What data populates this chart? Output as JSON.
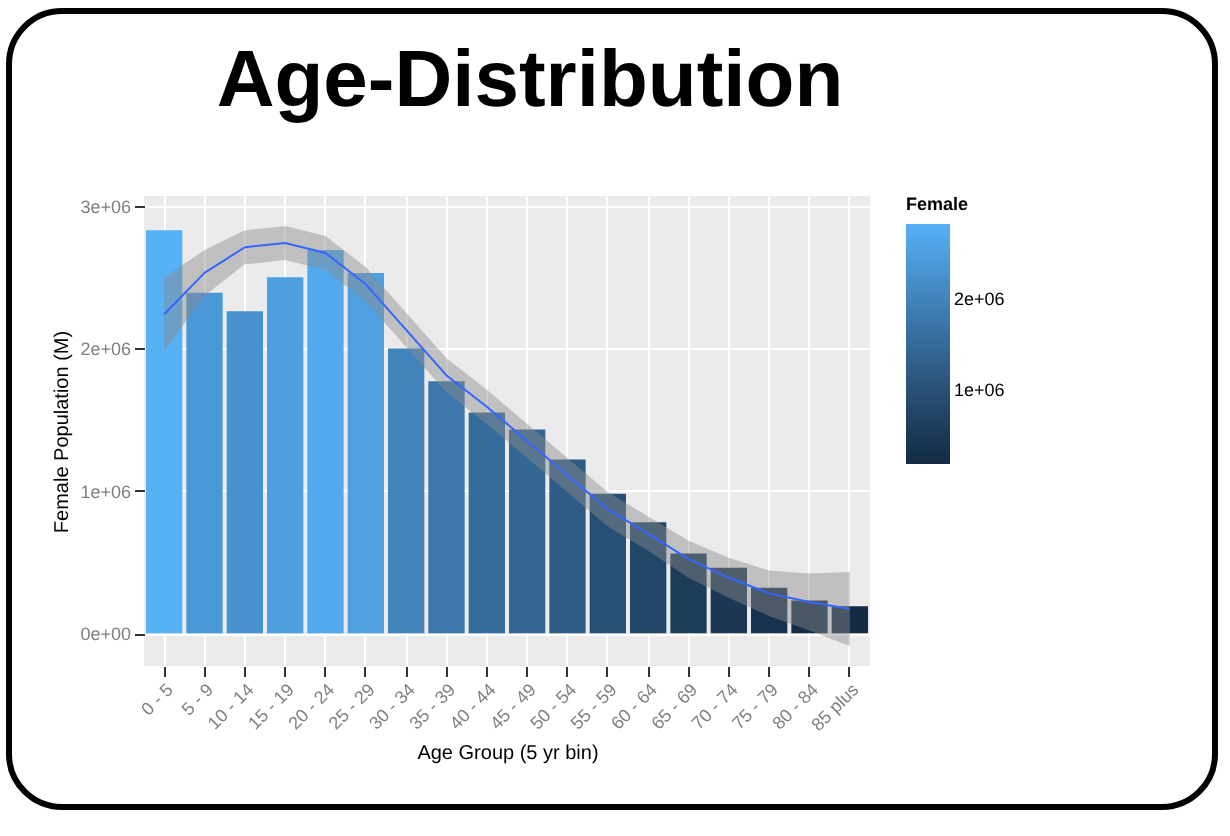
{
  "chart_data": {
    "type": "bar",
    "title": "Age-Distribution",
    "xlabel": "Age Group (5 yr bin)",
    "ylabel": "Female Population (M)",
    "legend_title": "Female",
    "categories": [
      "0 - 5",
      "5 - 9",
      "10 - 14",
      "15 - 19",
      "20 - 24",
      "25 - 29",
      "30 - 34",
      "35 - 39",
      "40 - 44",
      "45 - 49",
      "50 - 54",
      "55 - 59",
      "60 - 64",
      "65 - 69",
      "70 - 74",
      "75 - 79",
      "80 - 84",
      "85 plus"
    ],
    "series": [
      {
        "values": [
          2830000,
          2390000,
          2260000,
          2500000,
          2690000,
          2530000,
          2000000,
          1770000,
          1550000,
          1430000,
          1220000,
          980000,
          780000,
          560000,
          460000,
          320000,
          230000,
          190000
        ],
        "colors": [
          "#56b1f7",
          "#4b9bd9",
          "#4894d0",
          "#4ea0e1",
          "#52aaed",
          "#4ea2e2",
          "#4187be",
          "#3b7baf",
          "#3670a0",
          "#326a98",
          "#2d5f89",
          "#275379",
          "#22496b",
          "#1c3e5c",
          "#1a3955",
          "#16324c",
          "#142d46",
          "#132b43"
        ]
      },
      {
        "type": "line",
        "color": "#3366ff",
        "values": [
          2240000,
          2530000,
          2710000,
          2740000,
          2670000,
          2450000,
          2130000,
          1810000,
          1590000,
          1350000,
          1110000,
          870000,
          700000,
          520000,
          390000,
          280000,
          220000,
          170000
        ],
        "lower": [
          1980000,
          2370000,
          2590000,
          2620000,
          2550000,
          2330000,
          2010000,
          1690000,
          1470000,
          1230000,
          990000,
          750000,
          580000,
          390000,
          250000,
          120000,
          20000,
          -90000
        ],
        "upper": [
          2500000,
          2690000,
          2830000,
          2860000,
          2790000,
          2570000,
          2250000,
          1930000,
          1710000,
          1470000,
          1230000,
          990000,
          820000,
          650000,
          530000,
          440000,
          420000,
          430000
        ]
      }
    ],
    "ylim": [
      -230000,
      3070000
    ],
    "yticks": [
      {
        "value": 0,
        "label": "0e+00"
      },
      {
        "value": 1000000,
        "label": "1e+06"
      },
      {
        "value": 2000000,
        "label": "2e+06"
      },
      {
        "value": 3000000,
        "label": "3e+06"
      }
    ],
    "clim": [
      190000,
      2830000
    ],
    "cticks": [
      {
        "value": 1000000,
        "label": "1e+06"
      },
      {
        "value": 2000000,
        "label": "2e+06"
      }
    ],
    "grid": true
  }
}
